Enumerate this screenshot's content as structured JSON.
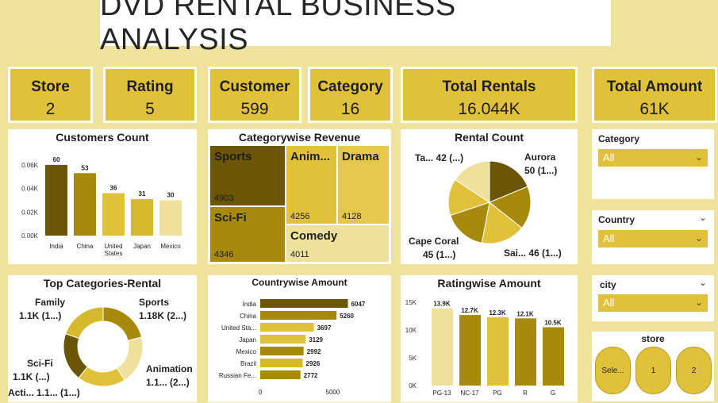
{
  "header": {
    "title": "DVD RENTAL BUSINESS ANALYSIS"
  },
  "kpis": [
    {
      "label": "Store",
      "value": "2"
    },
    {
      "label": "Rating",
      "value": "5"
    },
    {
      "label": "Customer",
      "value": "599"
    },
    {
      "label": "Category",
      "value": "16"
    },
    {
      "label": "Total Rentals",
      "value": "16.044K"
    },
    {
      "label": "Total Amount",
      "value": "61K"
    }
  ],
  "colors": {
    "dark": "#6b5507",
    "olive": "#a78a0c",
    "gold": "#e2c13a",
    "light": "#efe19d",
    "accent": "#d6b82c"
  },
  "slicers": {
    "category": {
      "label": "Category",
      "value": "All"
    },
    "country": {
      "label": "Country",
      "value": "All"
    },
    "city": {
      "label": "city",
      "value": "All"
    },
    "store": {
      "label": "store",
      "buttons": [
        "Sele...",
        "1",
        "2"
      ]
    }
  },
  "chart_data": [
    {
      "id": "customers",
      "type": "bar",
      "title": "Customers Count",
      "categories": [
        "India",
        "China",
        "United States",
        "Japan",
        "Mexico"
      ],
      "values": [
        60,
        53,
        36,
        31,
        30
      ],
      "data_labels": [
        "60",
        "53",
        "36",
        "31",
        "30"
      ],
      "y_ticks": [
        "0.00K",
        "0.02K",
        "0.04K",
        "0.06K"
      ],
      "ylim": [
        0,
        70
      ]
    },
    {
      "id": "categorywise",
      "type": "treemap",
      "title": "Categorywise Revenue",
      "categories": [
        "Sports",
        "Anim...",
        "Drama",
        "Sci-Fi",
        "Comedy"
      ],
      "values": [
        4903,
        4256,
        4128,
        4346,
        4011
      ],
      "data_labels": [
        "4903",
        "4256",
        "4128",
        "4346",
        "4011"
      ]
    },
    {
      "id": "rental",
      "type": "pie",
      "title": "Rental Count",
      "labels": [
        "Aurora",
        "Sai...",
        "Cape Coral",
        "Ta..."
      ],
      "values": [
        50,
        46,
        45,
        42
      ],
      "value_labels": [
        "50 (1...)",
        "46 (1...)",
        "45 (1...)",
        "42 (...)"
      ]
    },
    {
      "id": "topcat",
      "type": "pie",
      "title": "Top Categories-Rental",
      "labels": [
        "Sports",
        "Animation",
        "Acti...",
        "Sci-Fi",
        "Family"
      ],
      "values": [
        1.18,
        1.1,
        1.1,
        1.1,
        1.1
      ],
      "value_labels": [
        "1.18K (2...)",
        "1.1... (2...)",
        "1.1... (1...)",
        "1.1K (...)",
        "1.1K (1...)"
      ]
    },
    {
      "id": "countrywise",
      "type": "bar",
      "title": "Countrywise Amount",
      "categories": [
        "India",
        "China",
        "United Sta...",
        "Japan",
        "Mexico",
        "Brazil",
        "Russian Fe..."
      ],
      "values": [
        6047,
        5260,
        3697,
        3129,
        2992,
        2926,
        2772
      ],
      "data_labels": [
        "6047",
        "5260",
        "3697",
        "3129",
        "2992",
        "2926",
        "2772"
      ],
      "x_ticks": [
        "0",
        "5000"
      ],
      "xlim": [
        0,
        7000
      ]
    },
    {
      "id": "ratingwise",
      "type": "bar",
      "title": "Ratingwise Amount",
      "categories": [
        "PG-13",
        "NC-17",
        "PG",
        "R",
        "G"
      ],
      "values": [
        13.9,
        12.7,
        12.3,
        12.1,
        10.5
      ],
      "data_labels": [
        "13.9K",
        "12.7K",
        "12.3K",
        "12.1K",
        "10.5K"
      ],
      "y_ticks": [
        "0K",
        "5K",
        "10K",
        "15K"
      ],
      "ylim": [
        0,
        15
      ]
    }
  ]
}
